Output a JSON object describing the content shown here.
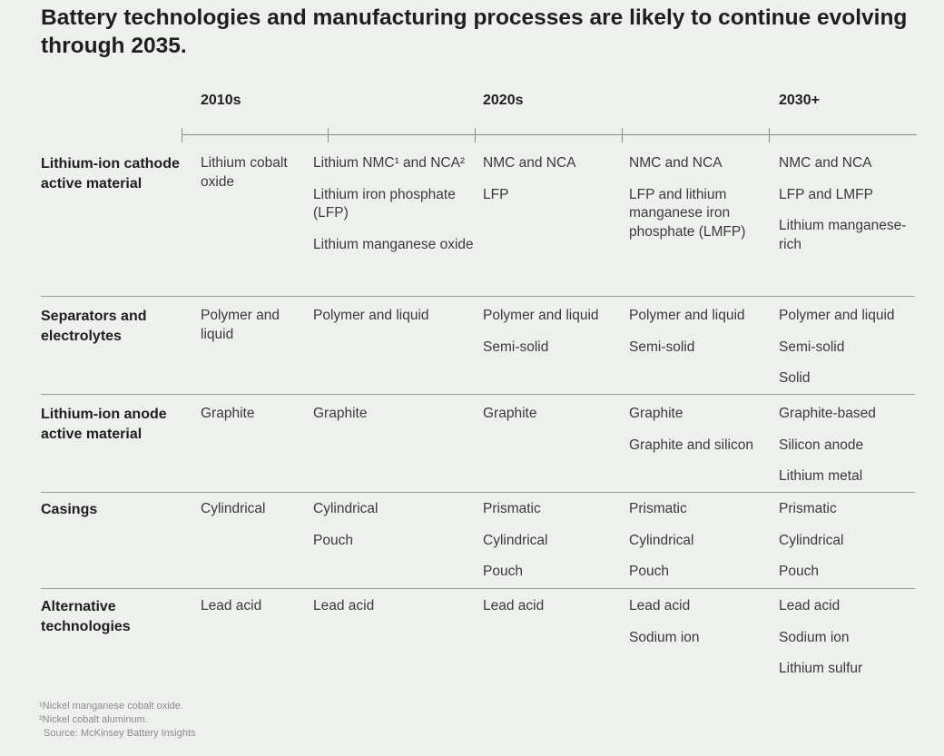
{
  "title": "Battery technologies and manufacturing processes are likely to continue evolving through 2035.",
  "eras": [
    "2010s",
    "2020s",
    "2030+"
  ],
  "rows": [
    {
      "label": "Lithium-ion cathode active material",
      "cells": [
        [
          "Lithium cobalt oxide"
        ],
        [
          "Lithium NMC¹ and NCA²",
          "Lithium iron phosphate (LFP)",
          "Lithium manganese oxide"
        ],
        [
          "NMC and NCA",
          "LFP"
        ],
        [
          "NMC and NCA",
          "LFP and lithium manganese iron phosphate (LMFP)"
        ],
        [
          "NMC and NCA",
          "LFP and LMFP",
          "Lithium manganese-rich"
        ]
      ]
    },
    {
      "label": "Separators and electrolytes",
      "cells": [
        [
          "Polymer and liquid"
        ],
        [
          "Polymer and liquid"
        ],
        [
          "Polymer and liquid",
          "Semi-solid"
        ],
        [
          "Polymer and liquid",
          "Semi-solid"
        ],
        [
          "Polymer and liquid",
          "Semi-solid",
          "Solid"
        ]
      ]
    },
    {
      "label": "Lithium-ion anode active material",
      "cells": [
        [
          "Graphite"
        ],
        [
          "Graphite"
        ],
        [
          "Graphite"
        ],
        [
          "Graphite",
          "Graphite and silicon"
        ],
        [
          "Graphite-based",
          "Silicon anode",
          "Lithium metal"
        ]
      ]
    },
    {
      "label": "Casings",
      "cells": [
        [
          "Cylindrical"
        ],
        [
          "Cylindrical",
          "Pouch"
        ],
        [
          "Prismatic",
          "Cylindrical",
          "Pouch"
        ],
        [
          "Prismatic",
          "Cylindrical",
          "Pouch"
        ],
        [
          "Prismatic",
          "Cylindrical",
          "Pouch"
        ]
      ]
    },
    {
      "label": "Alternative technologies",
      "cells": [
        [
          "Lead acid"
        ],
        [
          "Lead acid"
        ],
        [
          "Lead acid"
        ],
        [
          "Lead acid",
          "Sodium ion"
        ],
        [
          "Lead acid",
          "Sodium ion",
          "Lithium sulfur"
        ]
      ]
    }
  ],
  "footnotes": [
    "¹Nickel manganese cobalt oxide.",
    "²Nickel cobalt aluminum.",
    " Source: McKinsey Battery Insights"
  ]
}
